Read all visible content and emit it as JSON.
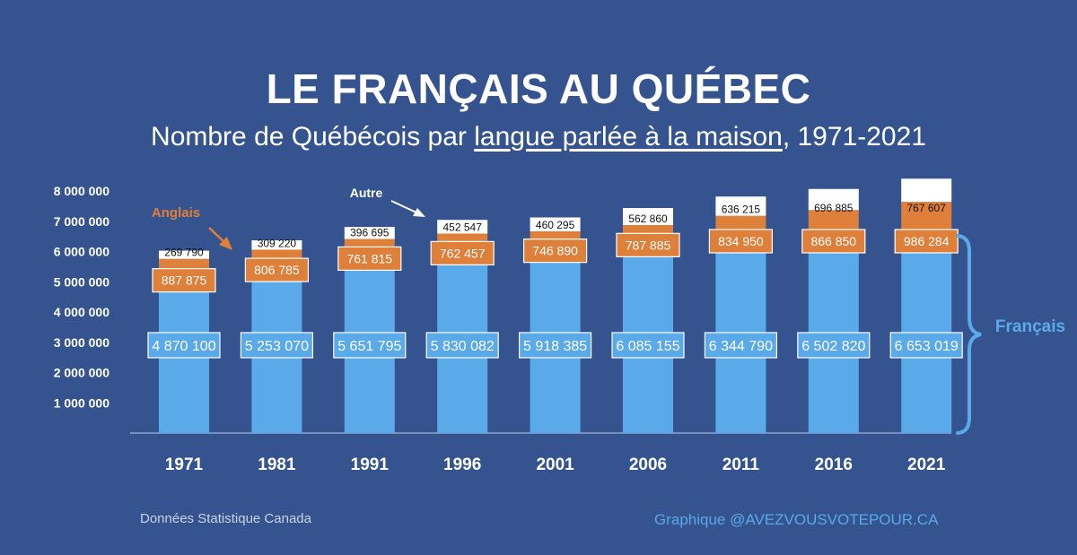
{
  "title": "LE FRANÇAIS AU QUÉBEC",
  "subtitle": {
    "before": "Nombre de Québécois par ",
    "underlined": "langue parlée à la maison",
    "after": ", 1971-2021"
  },
  "footer": {
    "source": "Données Statistique Canada",
    "credit": "Graphique @AVEZVOUSVOTEPOUR.CA"
  },
  "colors": {
    "background": "#35548f",
    "francais": "#5aaae9",
    "anglais": "#de7f3a",
    "autre": "#ffffff",
    "axis_text": "#ffffff"
  },
  "chart_data": {
    "type": "bar",
    "stacked": true,
    "categories": [
      "1971",
      "1981",
      "1991",
      "1996",
      "2001",
      "2006",
      "2011",
      "2016",
      "2021"
    ],
    "series": [
      {
        "name": "Français",
        "values": [
          4870100,
          5253070,
          5651795,
          5830082,
          5918385,
          6085155,
          6344790,
          6502820,
          6653019
        ],
        "labels": [
          "4 870 100",
          "5 253 070",
          "5 651 795",
          "5 830 082",
          "5 918 385",
          "6 085 155",
          "6 344 790",
          "6 502 820",
          "6 653 019"
        ]
      },
      {
        "name": "Anglais",
        "values": [
          887875,
          806785,
          761815,
          762457,
          746890,
          787885,
          834950,
          866850,
          986284
        ],
        "labels": [
          "887 875",
          "806 785",
          "761 815",
          "762 457",
          "746 890",
          "787 885",
          "834 950",
          "866 850",
          "986 284"
        ]
      },
      {
        "name": "Autre",
        "values": [
          269790,
          309220,
          396695,
          452547,
          460295,
          562860,
          636215,
          696885,
          767607
        ],
        "labels": [
          "269 790",
          "309 220",
          "396 695",
          "452 547",
          "460 295",
          "562 860",
          "636 215",
          "696 885",
          "767 607"
        ]
      }
    ],
    "ylim": [
      0,
      8000000
    ],
    "yticks": [
      1000000,
      2000000,
      3000000,
      4000000,
      5000000,
      6000000,
      7000000,
      8000000
    ],
    "ytick_labels": [
      "1 000 000",
      "2 000 000",
      "3 000 000",
      "4 000 000",
      "5 000 000",
      "6 000 000",
      "7 000 000",
      "8 000 000"
    ],
    "annotations": {
      "anglais": "Anglais",
      "autre": "Autre",
      "francais": "Français"
    },
    "grid": false
  }
}
